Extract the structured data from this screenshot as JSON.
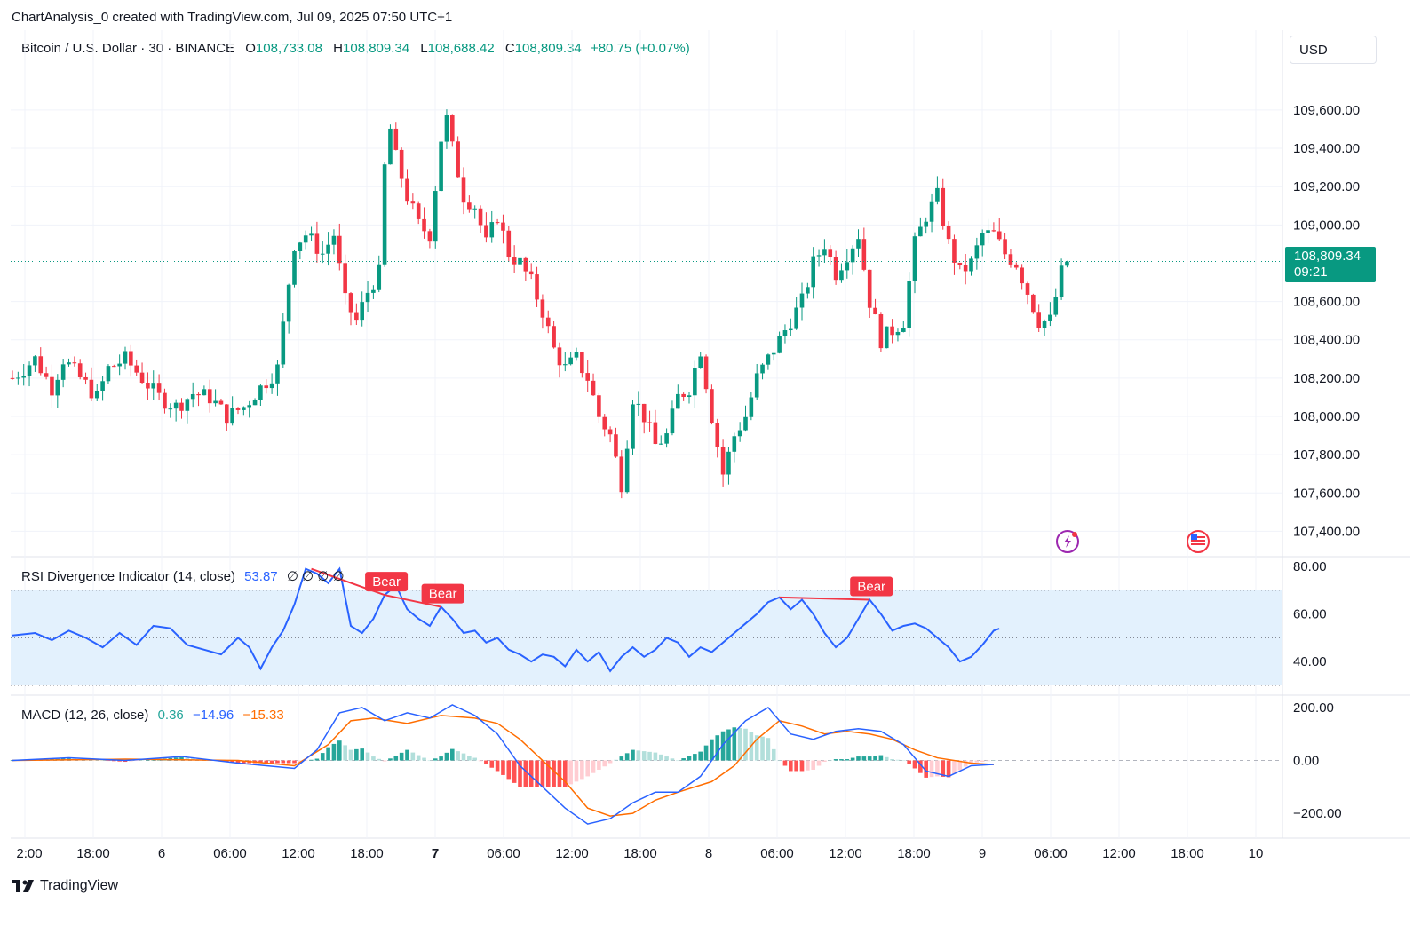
{
  "caption": "ChartAnalysis_0 created with TradingView.com, Jul 09, 2025 07:50 UTC+1",
  "brand": "TradingView",
  "header": {
    "symbol": "Bitcoin / U.S. Dollar · 30 · BINANCE",
    "open_label": "O",
    "open": "108,733.08",
    "high_label": "H",
    "high": "108,809.34",
    "low_label": "L",
    "low": "108,688.42",
    "close_label": "C",
    "close": "108,809.34",
    "change": "+80.75 (+0.07%)"
  },
  "currency_button": "USD",
  "last_price": {
    "price": "108,809.34",
    "countdown": "09:21"
  },
  "colors": {
    "up": "#089981",
    "down": "#f23645",
    "rsi": "#2962ff",
    "macd": "#2962ff",
    "signal": "#ff6d00",
    "rsi_band": "#e3f1fd"
  },
  "icons": {
    "lightning": "lightning-icon",
    "flag": "us-flag-icon",
    "logo": "tradingview-logo-icon"
  },
  "rsi_legend": {
    "name": "RSI Divergence Indicator (14, close)",
    "value": "53.87",
    "extras": "∅ ∅ ∅ ∅"
  },
  "macd_legend": {
    "name": "MACD (12, 26, close)",
    "histogram": "0.36",
    "macd": "−14.96",
    "signal": "−15.33"
  },
  "chart_data": [
    {
      "type": "candlestick",
      "title": "Bitcoin / U.S. Dollar · 30 · BINANCE",
      "y_axis_ticks": [
        "109,600.00",
        "109,400.00",
        "109,200.00",
        "109,000.00",
        "108,600.00",
        "108,400.00",
        "108,200.00",
        "108,000.00",
        "107,800.00",
        "107,600.00",
        "107,400.00"
      ],
      "ylim": [
        107300,
        109850
      ],
      "x_axis_ticks": [
        "2:00",
        "18:00",
        "6",
        "06:00",
        "12:00",
        "18:00",
        "7",
        "06:00",
        "12:00",
        "18:00",
        "8",
        "06:00",
        "12:00",
        "18:00",
        "9",
        "06:00",
        "12:00",
        "18:00",
        "10"
      ],
      "last_price_line": 108809.34,
      "close_path": [
        [
          0,
          108200
        ],
        [
          4,
          108300
        ],
        [
          7,
          108150
        ],
        [
          9,
          108300
        ],
        [
          12,
          108200
        ],
        [
          15,
          108100
        ],
        [
          17,
          108250
        ],
        [
          20,
          108300
        ],
        [
          23,
          108200
        ],
        [
          26,
          108100
        ],
        [
          29,
          108050
        ],
        [
          32,
          108120
        ],
        [
          35,
          108100
        ],
        [
          38,
          108000
        ],
        [
          41,
          108050
        ],
        [
          44,
          108150
        ],
        [
          47,
          108250
        ],
        [
          49,
          108700
        ],
        [
          50,
          108900
        ],
        [
          52,
          108950
        ],
        [
          55,
          108850
        ],
        [
          57,
          108950
        ],
        [
          59,
          108600
        ],
        [
          61,
          108500
        ],
        [
          63,
          108650
        ],
        [
          65,
          108750
        ],
        [
          66,
          109300
        ],
        [
          67,
          109500
        ],
        [
          68,
          109350
        ],
        [
          70,
          109150
        ],
        [
          72,
          109000
        ],
        [
          74,
          108950
        ],
        [
          76,
          109450
        ],
        [
          77,
          109550
        ],
        [
          78,
          109400
        ],
        [
          80,
          109150
        ],
        [
          82,
          109100
        ],
        [
          84,
          108900
        ],
        [
          86,
          109050
        ],
        [
          88,
          108850
        ],
        [
          90,
          108800
        ],
        [
          92,
          108700
        ],
        [
          94,
          108550
        ],
        [
          96,
          108350
        ],
        [
          98,
          108250
        ],
        [
          100,
          108300
        ],
        [
          102,
          108200
        ],
        [
          104,
          108000
        ],
        [
          106,
          107900
        ],
        [
          108,
          107650
        ],
        [
          110,
          108100
        ],
        [
          112,
          108000
        ],
        [
          114,
          107850
        ],
        [
          116,
          107900
        ],
        [
          118,
          108100
        ],
        [
          120,
          108150
        ],
        [
          122,
          108350
        ],
        [
          124,
          108000
        ],
        [
          126,
          107700
        ],
        [
          128,
          107900
        ],
        [
          130,
          108000
        ],
        [
          132,
          108200
        ],
        [
          134,
          108300
        ],
        [
          136,
          108400
        ],
        [
          138,
          108500
        ],
        [
          140,
          108600
        ],
        [
          142,
          108800
        ],
        [
          144,
          108900
        ],
        [
          146,
          108750
        ],
        [
          148,
          108850
        ],
        [
          150,
          108950
        ],
        [
          152,
          108600
        ],
        [
          154,
          108400
        ],
        [
          156,
          108450
        ],
        [
          158,
          108500
        ],
        [
          160,
          108900
        ],
        [
          162,
          109050
        ],
        [
          164,
          109150
        ],
        [
          166,
          108900
        ],
        [
          168,
          108750
        ],
        [
          170,
          108800
        ],
        [
          172,
          108950
        ],
        [
          174,
          108950
        ],
        [
          176,
          108850
        ],
        [
          178,
          108800
        ],
        [
          180,
          108650
        ],
        [
          182,
          108500
        ],
        [
          184,
          108500
        ],
        [
          186,
          108750
        ],
        [
          187,
          108809.34
        ]
      ]
    },
    {
      "type": "line",
      "title": "RSI Divergence Indicator (14, close)",
      "y_axis_ticks": [
        "80.00",
        "60.00",
        "40.00"
      ],
      "ylim": [
        27,
        83
      ],
      "band": [
        30,
        70
      ],
      "midline": 50,
      "series": [
        {
          "name": "RSI",
          "path": [
            [
              0,
              51
            ],
            [
              4,
              52
            ],
            [
              7,
              49
            ],
            [
              10,
              53
            ],
            [
              13,
              50
            ],
            [
              16,
              46
            ],
            [
              19,
              52
            ],
            [
              22,
              47
            ],
            [
              25,
              55
            ],
            [
              28,
              54
            ],
            [
              31,
              47
            ],
            [
              34,
              45
            ],
            [
              37,
              43
            ],
            [
              40,
              50
            ],
            [
              42,
              46
            ],
            [
              44,
              37
            ],
            [
              46,
              46
            ],
            [
              48,
              53
            ],
            [
              50,
              64
            ],
            [
              52,
              79
            ],
            [
              54,
              77
            ],
            [
              56,
              73
            ],
            [
              58,
              79
            ],
            [
              60,
              55
            ],
            [
              62,
              52
            ],
            [
              64,
              58
            ],
            [
              66,
              68
            ],
            [
              68,
              72
            ],
            [
              70,
              62
            ],
            [
              72,
              58
            ],
            [
              74,
              55
            ],
            [
              76,
              63
            ],
            [
              78,
              58
            ],
            [
              80,
              52
            ],
            [
              82,
              53
            ],
            [
              84,
              48
            ],
            [
              86,
              50
            ],
            [
              88,
              45
            ],
            [
              90,
              43
            ],
            [
              92,
              40
            ],
            [
              94,
              43
            ],
            [
              96,
              42
            ],
            [
              98,
              38
            ],
            [
              100,
              45
            ],
            [
              102,
              40
            ],
            [
              104,
              44
            ],
            [
              106,
              36
            ],
            [
              108,
              42
            ],
            [
              110,
              46
            ],
            [
              112,
              42
            ],
            [
              114,
              45
            ],
            [
              116,
              50
            ],
            [
              118,
              48
            ],
            [
              120,
              42
            ],
            [
              122,
              46
            ],
            [
              124,
              44
            ],
            [
              126,
              48
            ],
            [
              128,
              52
            ],
            [
              130,
              56
            ],
            [
              132,
              60
            ],
            [
              134,
              65
            ],
            [
              136,
              67
            ],
            [
              138,
              62
            ],
            [
              140,
              66
            ],
            [
              142,
              60
            ],
            [
              144,
              52
            ],
            [
              146,
              46
            ],
            [
              148,
              50
            ],
            [
              150,
              58
            ],
            [
              152,
              66
            ],
            [
              154,
              60
            ],
            [
              156,
              53
            ],
            [
              158,
              55
            ],
            [
              160,
              56
            ],
            [
              162,
              54
            ],
            [
              164,
              50
            ],
            [
              166,
              46
            ],
            [
              168,
              40
            ],
            [
              170,
              42
            ],
            [
              172,
              47
            ],
            [
              174,
              53
            ],
            [
              175,
              53.87
            ]
          ]
        }
      ],
      "annotations": [
        {
          "label": "Bear",
          "from": [
            53,
            79
          ],
          "to": [
            66,
            68
          ]
        },
        {
          "label": "Bear",
          "from": [
            66,
            68
          ],
          "to": [
            76,
            63
          ]
        },
        {
          "label": "Bear",
          "from": [
            136,
            67
          ],
          "to": [
            152,
            66
          ]
        }
      ]
    },
    {
      "type": "line+histogram",
      "title": "MACD (12, 26, close)",
      "y_axis_ticks": [
        "200.00",
        "0.00",
        "−200.00"
      ],
      "ylim": [
        -280,
        240
      ],
      "series": [
        {
          "name": "MACD",
          "path": [
            [
              0,
              0
            ],
            [
              10,
              10
            ],
            [
              20,
              0
            ],
            [
              30,
              15
            ],
            [
              40,
              -10
            ],
            [
              50,
              -30
            ],
            [
              54,
              40
            ],
            [
              58,
              180
            ],
            [
              62,
              200
            ],
            [
              66,
              150
            ],
            [
              70,
              180
            ],
            [
              74,
              160
            ],
            [
              78,
              210
            ],
            [
              82,
              170
            ],
            [
              86,
              100
            ],
            [
              90,
              -20
            ],
            [
              94,
              -100
            ],
            [
              98,
              -180
            ],
            [
              102,
              -240
            ],
            [
              106,
              -220
            ],
            [
              110,
              -160
            ],
            [
              114,
              -120
            ],
            [
              118,
              -120
            ],
            [
              122,
              -60
            ],
            [
              126,
              60
            ],
            [
              130,
              150
            ],
            [
              134,
              200
            ],
            [
              138,
              100
            ],
            [
              142,
              80
            ],
            [
              146,
              110
            ],
            [
              150,
              120
            ],
            [
              154,
              110
            ],
            [
              158,
              60
            ],
            [
              162,
              -40
            ],
            [
              166,
              -60
            ],
            [
              170,
              -20
            ],
            [
              174,
              -14.96
            ]
          ]
        },
        {
          "name": "Signal",
          "path": [
            [
              0,
              0
            ],
            [
              20,
              5
            ],
            [
              40,
              0
            ],
            [
              50,
              -20
            ],
            [
              56,
              60
            ],
            [
              60,
              150
            ],
            [
              64,
              160
            ],
            [
              70,
              140
            ],
            [
              76,
              170
            ],
            [
              82,
              160
            ],
            [
              86,
              140
            ],
            [
              90,
              80
            ],
            [
              94,
              0
            ],
            [
              98,
              -80
            ],
            [
              102,
              -180
            ],
            [
              106,
              -210
            ],
            [
              110,
              -200
            ],
            [
              114,
              -150
            ],
            [
              118,
              -120
            ],
            [
              124,
              -80
            ],
            [
              128,
              -20
            ],
            [
              132,
              80
            ],
            [
              136,
              150
            ],
            [
              140,
              130
            ],
            [
              144,
              100
            ],
            [
              148,
              110
            ],
            [
              152,
              100
            ],
            [
              156,
              80
            ],
            [
              160,
              40
            ],
            [
              164,
              10
            ],
            [
              170,
              -10
            ],
            [
              174,
              -15.33
            ]
          ]
        }
      ]
    }
  ],
  "bear_label": "Bear"
}
